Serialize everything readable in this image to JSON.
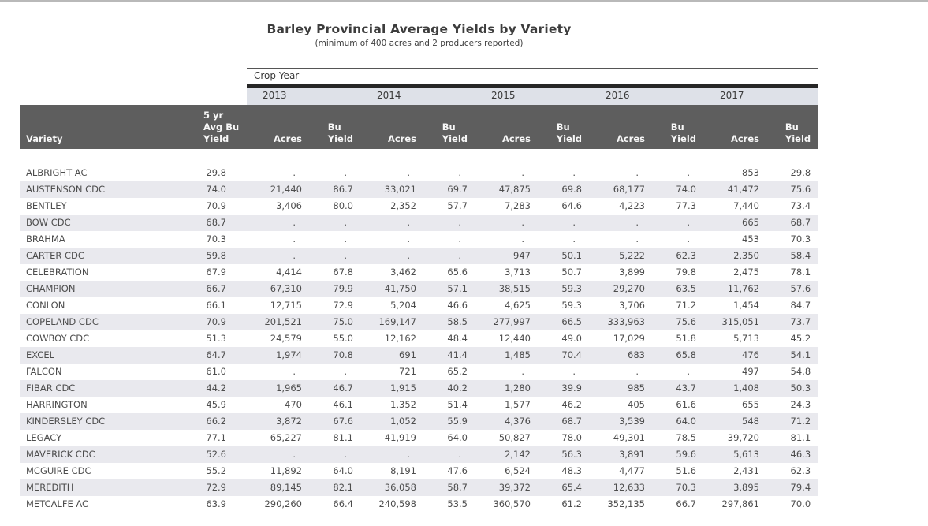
{
  "title": "Barley Provincial Average Yields by Variety",
  "subtitle": "(minimum of 400 acres and 2 producers reported)",
  "colors": {
    "header_bg": "#5e5e5e",
    "header_text": "#f7f7f7",
    "year_band_bg": "#dee1e8",
    "row_stripe_bg": "#e9e9ee",
    "body_text": "#4d4d4d"
  },
  "table": {
    "crop_year_label": "Crop Year",
    "years": [
      "2013",
      "2014",
      "2015",
      "2016",
      "2017"
    ],
    "headers": {
      "variety": "Variety",
      "avg_lines": [
        "5 yr",
        "Avg Bu",
        "Yield"
      ],
      "acres": "Acres",
      "bu_yield_lines": [
        "Bu",
        "Yield"
      ]
    },
    "missing_marker": ".",
    "rows": [
      [
        "ALBRIGHT AC",
        "29.8",
        ".",
        ".",
        ".",
        ".",
        ".",
        ".",
        ".",
        ".",
        "853",
        "29.8"
      ],
      [
        "AUSTENSON CDC",
        "74.0",
        "21,440",
        "86.7",
        "33,021",
        "69.7",
        "47,875",
        "69.8",
        "68,177",
        "74.0",
        "41,472",
        "75.6"
      ],
      [
        "BENTLEY",
        "70.9",
        "3,406",
        "80.0",
        "2,352",
        "57.7",
        "7,283",
        "64.6",
        "4,223",
        "77.3",
        "7,440",
        "73.4"
      ],
      [
        "BOW CDC",
        "68.7",
        ".",
        ".",
        ".",
        ".",
        ".",
        ".",
        ".",
        ".",
        "665",
        "68.7"
      ],
      [
        "BRAHMA",
        "70.3",
        ".",
        ".",
        ".",
        ".",
        ".",
        ".",
        ".",
        ".",
        "453",
        "70.3"
      ],
      [
        "CARTER CDC",
        "59.8",
        ".",
        ".",
        ".",
        ".",
        "947",
        "50.1",
        "5,222",
        "62.3",
        "2,350",
        "58.4"
      ],
      [
        "CELEBRATION",
        "67.9",
        "4,414",
        "67.8",
        "3,462",
        "65.6",
        "3,713",
        "50.7",
        "3,899",
        "79.8",
        "2,475",
        "78.1"
      ],
      [
        "CHAMPION",
        "66.7",
        "67,310",
        "79.9",
        "41,750",
        "57.1",
        "38,515",
        "59.3",
        "29,270",
        "63.5",
        "11,762",
        "57.6"
      ],
      [
        "CONLON",
        "66.1",
        "12,715",
        "72.9",
        "5,204",
        "46.6",
        "4,625",
        "59.3",
        "3,706",
        "71.2",
        "1,454",
        "84.7"
      ],
      [
        "COPELAND CDC",
        "70.9",
        "201,521",
        "75.0",
        "169,147",
        "58.5",
        "277,997",
        "66.5",
        "333,963",
        "75.6",
        "315,051",
        "73.7"
      ],
      [
        "COWBOY CDC",
        "51.3",
        "24,579",
        "55.0",
        "12,162",
        "48.4",
        "12,440",
        "49.0",
        "17,029",
        "51.8",
        "5,713",
        "45.2"
      ],
      [
        "EXCEL",
        "64.7",
        "1,974",
        "70.8",
        "691",
        "41.4",
        "1,485",
        "70.4",
        "683",
        "65.8",
        "476",
        "54.1"
      ],
      [
        "FALCON",
        "61.0",
        ".",
        ".",
        "721",
        "65.2",
        ".",
        ".",
        ".",
        ".",
        "497",
        "54.8"
      ],
      [
        "FIBAR CDC",
        "44.2",
        "1,965",
        "46.7",
        "1,915",
        "40.2",
        "1,280",
        "39.9",
        "985",
        "43.7",
        "1,408",
        "50.3"
      ],
      [
        "HARRINGTON",
        "45.9",
        "470",
        "46.1",
        "1,352",
        "51.4",
        "1,577",
        "46.2",
        "405",
        "61.6",
        "655",
        "24.3"
      ],
      [
        "KINDERSLEY CDC",
        "66.2",
        "3,872",
        "67.6",
        "1,052",
        "55.9",
        "4,376",
        "68.7",
        "3,539",
        "64.0",
        "548",
        "71.2"
      ],
      [
        "LEGACY",
        "77.1",
        "65,227",
        "81.1",
        "41,919",
        "64.0",
        "50,827",
        "78.0",
        "49,301",
        "78.5",
        "39,720",
        "81.1"
      ],
      [
        "MAVERICK CDC",
        "52.6",
        ".",
        ".",
        ".",
        ".",
        "2,142",
        "56.3",
        "3,891",
        "59.6",
        "5,613",
        "46.3"
      ],
      [
        "MCGUIRE CDC",
        "55.2",
        "11,892",
        "64.0",
        "8,191",
        "47.6",
        "6,524",
        "48.3",
        "4,477",
        "51.6",
        "2,431",
        "62.3"
      ],
      [
        "MEREDITH",
        "72.9",
        "89,145",
        "82.1",
        "36,058",
        "58.7",
        "39,372",
        "65.4",
        "12,633",
        "70.3",
        "3,895",
        "79.4"
      ],
      [
        "METCALFE AC",
        "63.9",
        "290,260",
        "66.4",
        "240,598",
        "53.5",
        "360,570",
        "61.2",
        "352,135",
        "66.7",
        "297,861",
        "70.0"
      ]
    ]
  }
}
